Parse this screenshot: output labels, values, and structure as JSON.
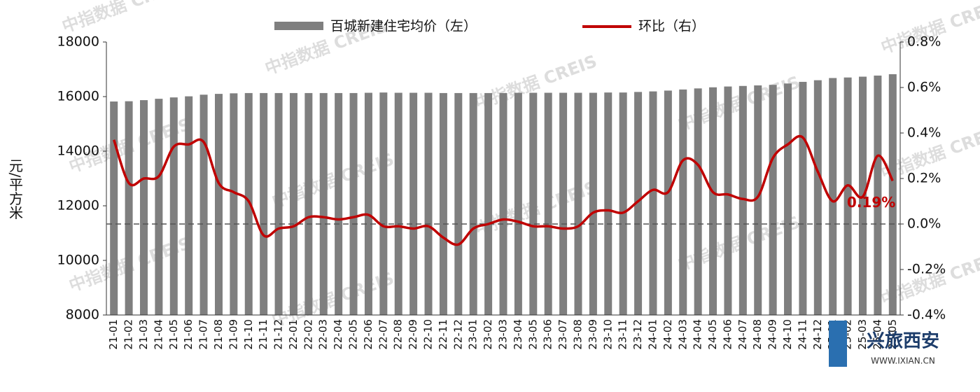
{
  "chart_data": {
    "type": "bar_line",
    "categories": [
      "21-01",
      "21-02",
      "21-03",
      "21-04",
      "21-05",
      "21-06",
      "21-07",
      "21-08",
      "21-09",
      "21-10",
      "21-11",
      "21-12",
      "22-01",
      "22-02",
      "22-03",
      "22-04",
      "22-05",
      "22-06",
      "22-07",
      "22-08",
      "22-09",
      "22-10",
      "22-11",
      "22-12",
      "23-01",
      "23-02",
      "23-03",
      "23-04",
      "23-05",
      "23-06",
      "23-07",
      "23-08",
      "23-09",
      "23-10",
      "23-11",
      "23-12",
      "24-01",
      "24-02",
      "24-03",
      "24-04",
      "24-05",
      "24-06",
      "24-07",
      "24-08",
      "24-09",
      "24-10",
      "24-11",
      "24-12",
      "25-01",
      "25-02",
      "25-03",
      "25-04",
      "25-05"
    ],
    "series": [
      {
        "name": "百城新建住宅均价（左）",
        "type": "bar",
        "color": "#7f7f7f",
        "values": [
          15820,
          15830,
          15870,
          15920,
          15970,
          16010,
          16070,
          16100,
          16120,
          16130,
          16130,
          16130,
          16130,
          16130,
          16130,
          16130,
          16130,
          16140,
          16150,
          16140,
          16140,
          16140,
          16130,
          16130,
          16130,
          16130,
          16130,
          16140,
          16140,
          16140,
          16140,
          16140,
          16140,
          16150,
          16150,
          16170,
          16190,
          16220,
          16260,
          16300,
          16340,
          16370,
          16390,
          16410,
          16430,
          16480,
          16540,
          16600,
          16680,
          16700,
          16730,
          16770,
          16820
        ]
      },
      {
        "name": "环比（右）",
        "type": "line",
        "axis": "y2",
        "color": "#c00000",
        "values": [
          0.37,
          0.18,
          0.2,
          0.21,
          0.34,
          0.35,
          0.36,
          0.18,
          0.14,
          0.1,
          -0.05,
          -0.02,
          -0.01,
          0.03,
          0.03,
          0.02,
          0.03,
          0.04,
          -0.01,
          -0.01,
          -0.02,
          -0.01,
          -0.06,
          -0.09,
          -0.02,
          0.0,
          0.02,
          0.01,
          -0.01,
          -0.01,
          -0.02,
          -0.01,
          0.05,
          0.06,
          0.05,
          0.1,
          0.15,
          0.14,
          0.28,
          0.26,
          0.14,
          0.13,
          0.11,
          0.12,
          0.29,
          0.35,
          0.38,
          0.23,
          0.1,
          0.17,
          0.12,
          0.3,
          0.19
        ],
        "value_labels": [
          null,
          null,
          null,
          null,
          null,
          null,
          null,
          null,
          null,
          null,
          null,
          null,
          null,
          null,
          null,
          null,
          null,
          null,
          null,
          null,
          null,
          null,
          null,
          null,
          null,
          null,
          null,
          null,
          null,
          null,
          null,
          null,
          null,
          null,
          null,
          null,
          null,
          null,
          null,
          null,
          null,
          null,
          null,
          null,
          null,
          null,
          null,
          null,
          null,
          null,
          null,
          null,
          "0.19%"
        ]
      }
    ],
    "ylabel": "元/平方米",
    "ylim": [
      8000,
      18000
    ],
    "yticks": [
      8000,
      10000,
      12000,
      14000,
      16000,
      18000
    ],
    "y2lim": [
      -0.4,
      0.8
    ],
    "y2ticks": [
      {
        "value": -0.4,
        "label": "-0.4%"
      },
      {
        "value": -0.2,
        "label": "-0.2%"
      },
      {
        "value": 0.0,
        "label": "0.0%"
      },
      {
        "value": 0.2,
        "label": "0.2%"
      },
      {
        "value": 0.4,
        "label": "0.4%"
      },
      {
        "value": 0.6,
        "label": "0.6%"
      },
      {
        "value": 0.8,
        "label": "0.8%"
      }
    ],
    "reference_line": {
      "axis": "y2",
      "value": 0
    },
    "legend": "top",
    "grid": false,
    "watermark": "中指数据 CREIS",
    "logo": {
      "name": "兴旅西安",
      "url": "WWW.IXIAN.CN"
    }
  }
}
